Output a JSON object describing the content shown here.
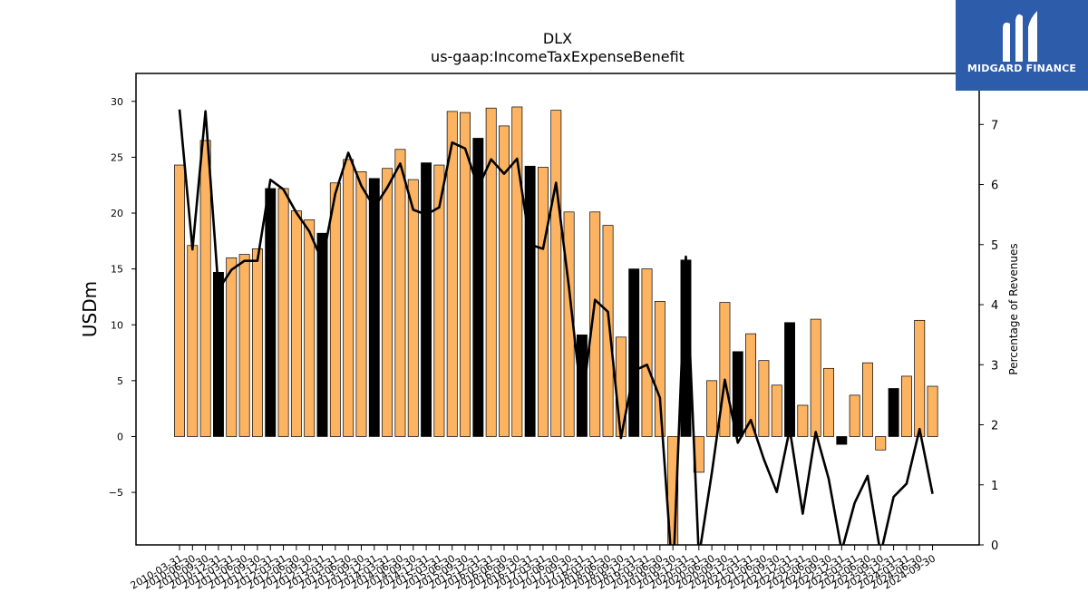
{
  "chart_data": {
    "type": "bar",
    "title": "DLX",
    "subtitle": "us-gaap:IncomeTaxExpenseBenefit",
    "ylabel": "USDm",
    "y2label": "Percentage of Revenues",
    "ylim": [
      -9.7,
      32.5
    ],
    "y2lim": [
      0,
      7.85
    ],
    "yticks": [
      -5,
      0,
      5,
      10,
      15,
      20,
      25,
      30
    ],
    "y2ticks": [
      0,
      1,
      2,
      3,
      4,
      5,
      6,
      7
    ],
    "grid": false,
    "colors": {
      "bar": "#fdb462",
      "bar_q4": "#000000",
      "line": "#000000"
    },
    "categories": [
      "2010-03-31",
      "2010-06-30",
      "2010-09-30",
      "2010-12-31",
      "2011-03-31",
      "2011-06-30",
      "2011-09-30",
      "2011-12-31",
      "2012-03-31",
      "2012-06-30",
      "2012-09-30",
      "2012-12-31",
      "2013-03-31",
      "2013-06-30",
      "2013-09-30",
      "2013-12-31",
      "2014-03-31",
      "2014-06-30",
      "2014-09-30",
      "2014-12-31",
      "2015-03-31",
      "2015-06-30",
      "2015-09-30",
      "2015-12-31",
      "2016-03-31",
      "2016-06-30",
      "2016-09-30",
      "2016-12-31",
      "2017-03-31",
      "2017-06-30",
      "2017-09-30",
      "2017-12-31",
      "2018-03-31",
      "2018-06-30",
      "2018-09-30",
      "2018-12-31",
      "2019-03-31",
      "2019-06-30",
      "2019-09-30",
      "2019-12-31",
      "2020-03-31",
      "2020-06-30",
      "2020-09-30",
      "2020-12-31",
      "2021-03-31",
      "2021-06-30",
      "2021-09-30",
      "2021-12-31",
      "2022-03-31",
      "2022-06-30",
      "2022-09-30",
      "2022-12-31",
      "2023-03-31",
      "2023-06-30",
      "2023-09-30",
      "2023-12-31",
      "2024-03-31",
      "2024-06-30",
      "2024-09-30"
    ],
    "series": [
      {
        "type": "bar",
        "axis": "left",
        "values": [
          24.3,
          17.1,
          26.5,
          14.7,
          16.0,
          16.3,
          16.8,
          22.2,
          22.2,
          20.2,
          19.4,
          18.2,
          22.7,
          24.8,
          23.7,
          23.1,
          24.0,
          25.7,
          23.0,
          24.5,
          24.3,
          29.1,
          29.0,
          26.7,
          29.4,
          27.8,
          29.5,
          24.2,
          24.1,
          29.2,
          20.1,
          9.1,
          20.1,
          18.9,
          8.9,
          15.0,
          15.0,
          12.1,
          -10.5,
          15.8,
          -3.2,
          5.0,
          12.0,
          7.6,
          9.2,
          6.8,
          4.6,
          10.2,
          2.8,
          10.5,
          6.1,
          -0.7,
          3.7,
          6.6,
          -1.2,
          4.3,
          5.4,
          10.4,
          4.5
        ]
      },
      {
        "type": "line",
        "axis": "right",
        "values": [
          7.25,
          4.92,
          7.22,
          4.25,
          4.58,
          4.73,
          4.73,
          6.08,
          5.92,
          5.53,
          5.22,
          4.72,
          5.85,
          6.53,
          5.98,
          5.62,
          5.95,
          6.35,
          5.58,
          5.5,
          5.62,
          6.7,
          6.6,
          5.95,
          6.42,
          6.18,
          6.43,
          5.0,
          4.93,
          6.03,
          4.28,
          2.35,
          4.08,
          3.88,
          1.78,
          2.9,
          3.0,
          2.45,
          -0.6,
          4.8,
          -0.2,
          1.2,
          2.75,
          1.7,
          2.08,
          1.43,
          0.88,
          1.93,
          0.52,
          1.88,
          1.1,
          -0.1,
          0.7,
          1.15,
          -0.15,
          0.8,
          1.02,
          1.93,
          0.85
        ]
      }
    ]
  },
  "logo": {
    "name": "MIDGARD FINANCE"
  }
}
